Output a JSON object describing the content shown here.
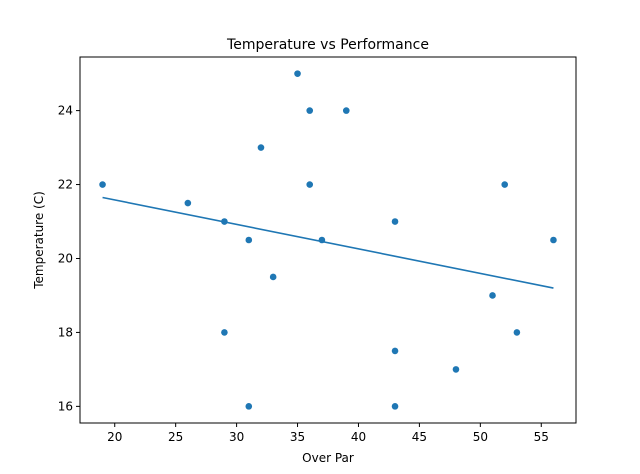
{
  "chart_data": {
    "type": "scatter",
    "title": "Temperature vs Performance",
    "xlabel": "Over Par",
    "ylabel": "Temperature (C)",
    "xlim": [
      17.15,
      57.85
    ],
    "ylim": [
      15.55,
      25.45
    ],
    "xticks": [
      20,
      25,
      30,
      35,
      40,
      45,
      50,
      55
    ],
    "yticks": [
      16,
      18,
      20,
      22,
      24
    ],
    "grid": false,
    "legend": "none",
    "series": [
      {
        "points": [
          {
            "x": 19,
            "y": 22
          },
          {
            "x": 26,
            "y": 21.5
          },
          {
            "x": 29,
            "y": 21
          },
          {
            "x": 29,
            "y": 18
          },
          {
            "x": 31,
            "y": 20.5
          },
          {
            "x": 31,
            "y": 16
          },
          {
            "x": 32,
            "y": 23
          },
          {
            "x": 33,
            "y": 19.5
          },
          {
            "x": 35,
            "y": 25
          },
          {
            "x": 36,
            "y": 24
          },
          {
            "x": 36,
            "y": 22
          },
          {
            "x": 37,
            "y": 20.5
          },
          {
            "x": 39,
            "y": 24
          },
          {
            "x": 43,
            "y": 21
          },
          {
            "x": 43,
            "y": 17.5
          },
          {
            "x": 43,
            "y": 16
          },
          {
            "x": 48,
            "y": 17
          },
          {
            "x": 51,
            "y": 19
          },
          {
            "x": 52,
            "y": 22
          },
          {
            "x": 53,
            "y": 18
          },
          {
            "x": 56,
            "y": 20.5
          }
        ]
      }
    ],
    "trend_line": {
      "x": [
        19,
        56
      ],
      "y": [
        21.65,
        19.2
      ]
    },
    "colors": {
      "marker": "#1f77b4",
      "line": "#1f77b4"
    }
  }
}
